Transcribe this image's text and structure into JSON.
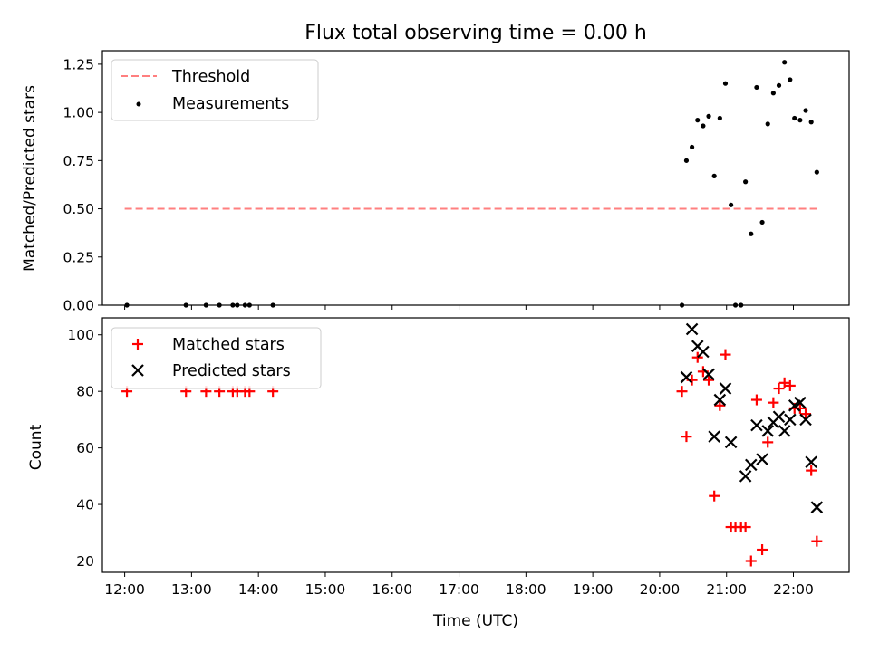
{
  "chart_data": [
    {
      "type": "line",
      "title": "Flux total observing time = 0.00 h",
      "ylabel": "Matched/Predicted stars",
      "xlabel": "",
      "xlim": [
        "11:40",
        "22:50"
      ],
      "ylim": [
        0,
        1.32
      ],
      "yticks": [
        "0.00",
        "0.25",
        "0.50",
        "0.75",
        "1.00",
        "1.25"
      ],
      "legend_position": "top-left",
      "series": [
        {
          "name": "Threshold",
          "style": "dashed line",
          "color": "#ff7f7f",
          "points": [
            [
              "12:00",
              0.5
            ],
            [
              "22:22",
              0.5
            ]
          ]
        },
        {
          "name": "Measurements",
          "style": "dots",
          "color": "#000000",
          "points": [
            [
              "12:02",
              0.0
            ],
            [
              "12:55",
              0.0
            ],
            [
              "13:13",
              0.0
            ],
            [
              "13:25",
              0.0
            ],
            [
              "13:37",
              0.0
            ],
            [
              "13:41",
              0.0
            ],
            [
              "13:48",
              0.0
            ],
            [
              "13:52",
              0.0
            ],
            [
              "14:13",
              0.0
            ],
            [
              "20:20",
              0.0
            ],
            [
              "21:08",
              0.0
            ],
            [
              "21:13",
              0.0
            ],
            [
              "20:24",
              0.75
            ],
            [
              "20:29",
              0.82
            ],
            [
              "20:34",
              0.96
            ],
            [
              "20:39",
              0.93
            ],
            [
              "20:44",
              0.98
            ],
            [
              "20:49",
              0.67
            ],
            [
              "20:54",
              0.97
            ],
            [
              "20:59",
              1.15
            ],
            [
              "21:04",
              0.52
            ],
            [
              "21:17",
              0.64
            ],
            [
              "21:22",
              0.37
            ],
            [
              "21:27",
              1.13
            ],
            [
              "21:32",
              0.43
            ],
            [
              "21:37",
              0.94
            ],
            [
              "21:42",
              1.1
            ],
            [
              "21:47",
              1.14
            ],
            [
              "21:52",
              1.26
            ],
            [
              "21:57",
              1.17
            ],
            [
              "22:01",
              0.97
            ],
            [
              "22:06",
              0.96
            ],
            [
              "22:11",
              1.01
            ],
            [
              "22:16",
              0.95
            ],
            [
              "22:21",
              0.69
            ]
          ]
        }
      ]
    },
    {
      "type": "scatter",
      "title": "",
      "xlabel": "Time (UTC)",
      "ylabel": "Count",
      "xlim": [
        "11:40",
        "22:50"
      ],
      "ylim": [
        16,
        106
      ],
      "xticks": [
        "12:00",
        "13:00",
        "14:00",
        "15:00",
        "16:00",
        "17:00",
        "18:00",
        "19:00",
        "20:00",
        "21:00",
        "22:00"
      ],
      "yticks": [
        "20",
        "40",
        "60",
        "80",
        "100"
      ],
      "legend_position": "top-left",
      "series": [
        {
          "name": "Matched stars",
          "marker": "+",
          "color": "#ff0000",
          "points": [
            [
              "12:02",
              80
            ],
            [
              "12:55",
              80
            ],
            [
              "13:13",
              80
            ],
            [
              "13:25",
              80
            ],
            [
              "13:37",
              80
            ],
            [
              "13:41",
              80
            ],
            [
              "13:48",
              80
            ],
            [
              "13:52",
              80
            ],
            [
              "14:13",
              80
            ],
            [
              "20:20",
              80
            ],
            [
              "20:24",
              64
            ],
            [
              "20:29",
              84
            ],
            [
              "20:34",
              92
            ],
            [
              "20:39",
              87
            ],
            [
              "20:44",
              84
            ],
            [
              "20:49",
              43
            ],
            [
              "20:54",
              75
            ],
            [
              "20:59",
              93
            ],
            [
              "21:04",
              32
            ],
            [
              "21:08",
              32
            ],
            [
              "21:13",
              32
            ],
            [
              "21:17",
              32
            ],
            [
              "21:22",
              20
            ],
            [
              "21:27",
              77
            ],
            [
              "21:32",
              24
            ],
            [
              "21:37",
              62
            ],
            [
              "21:42",
              76
            ],
            [
              "21:47",
              81
            ],
            [
              "21:52",
              83
            ],
            [
              "21:57",
              82
            ],
            [
              "22:01",
              74
            ],
            [
              "22:06",
              74
            ],
            [
              "22:11",
              72
            ],
            [
              "22:16",
              52
            ],
            [
              "22:21",
              27
            ]
          ]
        },
        {
          "name": "Predicted stars",
          "marker": "x",
          "color": "#000000",
          "points": [
            [
              "20:24",
              85
            ],
            [
              "20:29",
              102
            ],
            [
              "20:34",
              96
            ],
            [
              "20:39",
              94
            ],
            [
              "20:44",
              86
            ],
            [
              "20:49",
              64
            ],
            [
              "20:54",
              77
            ],
            [
              "20:59",
              81
            ],
            [
              "21:04",
              62
            ],
            [
              "21:17",
              50
            ],
            [
              "21:22",
              54
            ],
            [
              "21:27",
              68
            ],
            [
              "21:32",
              56
            ],
            [
              "21:37",
              66
            ],
            [
              "21:42",
              69
            ],
            [
              "21:47",
              71
            ],
            [
              "21:52",
              66
            ],
            [
              "21:57",
              70
            ],
            [
              "22:01",
              75
            ],
            [
              "22:06",
              76
            ],
            [
              "22:11",
              70
            ],
            [
              "22:16",
              55
            ],
            [
              "22:21",
              39
            ]
          ]
        }
      ]
    }
  ]
}
